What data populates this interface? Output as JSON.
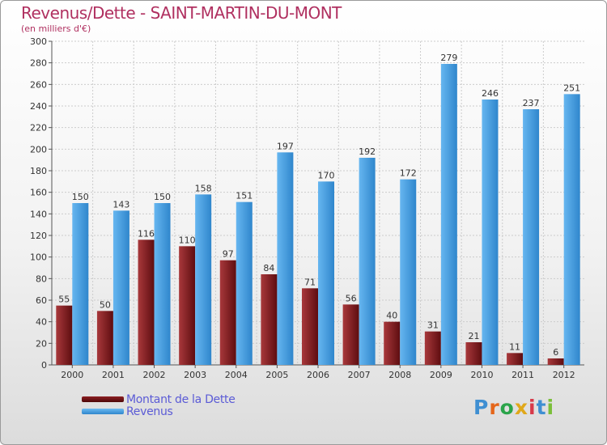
{
  "header": {
    "title": "Revenus/Dette - SAINT-MARTIN-DU-MONT",
    "subtitle": "(en milliers d'€)"
  },
  "logo": {
    "text": "Proxiti"
  },
  "colors": {
    "title": "#b03060",
    "dette": "#7a1518",
    "revenus": "#4aa3e6",
    "legend_text": "#5b5bd6"
  },
  "chart_data": {
    "type": "bar",
    "categories": [
      "2000",
      "2001",
      "2002",
      "2003",
      "2004",
      "2005",
      "2006",
      "2007",
      "2008",
      "2009",
      "2010",
      "2011",
      "2012"
    ],
    "series": [
      {
        "name": "Montant de la Dette",
        "values": [
          55,
          50,
          116,
          110,
          97,
          84,
          71,
          56,
          40,
          31,
          21,
          11,
          6
        ]
      },
      {
        "name": "Revenus",
        "values": [
          150,
          143,
          150,
          158,
          151,
          197,
          170,
          192,
          172,
          279,
          246,
          237,
          251
        ]
      }
    ],
    "ylim": [
      0,
      300
    ],
    "yticks": [
      0,
      20,
      40,
      60,
      80,
      100,
      120,
      140,
      160,
      180,
      200,
      220,
      240,
      260,
      280,
      300
    ],
    "grid": true,
    "legend": "bottom-left"
  }
}
